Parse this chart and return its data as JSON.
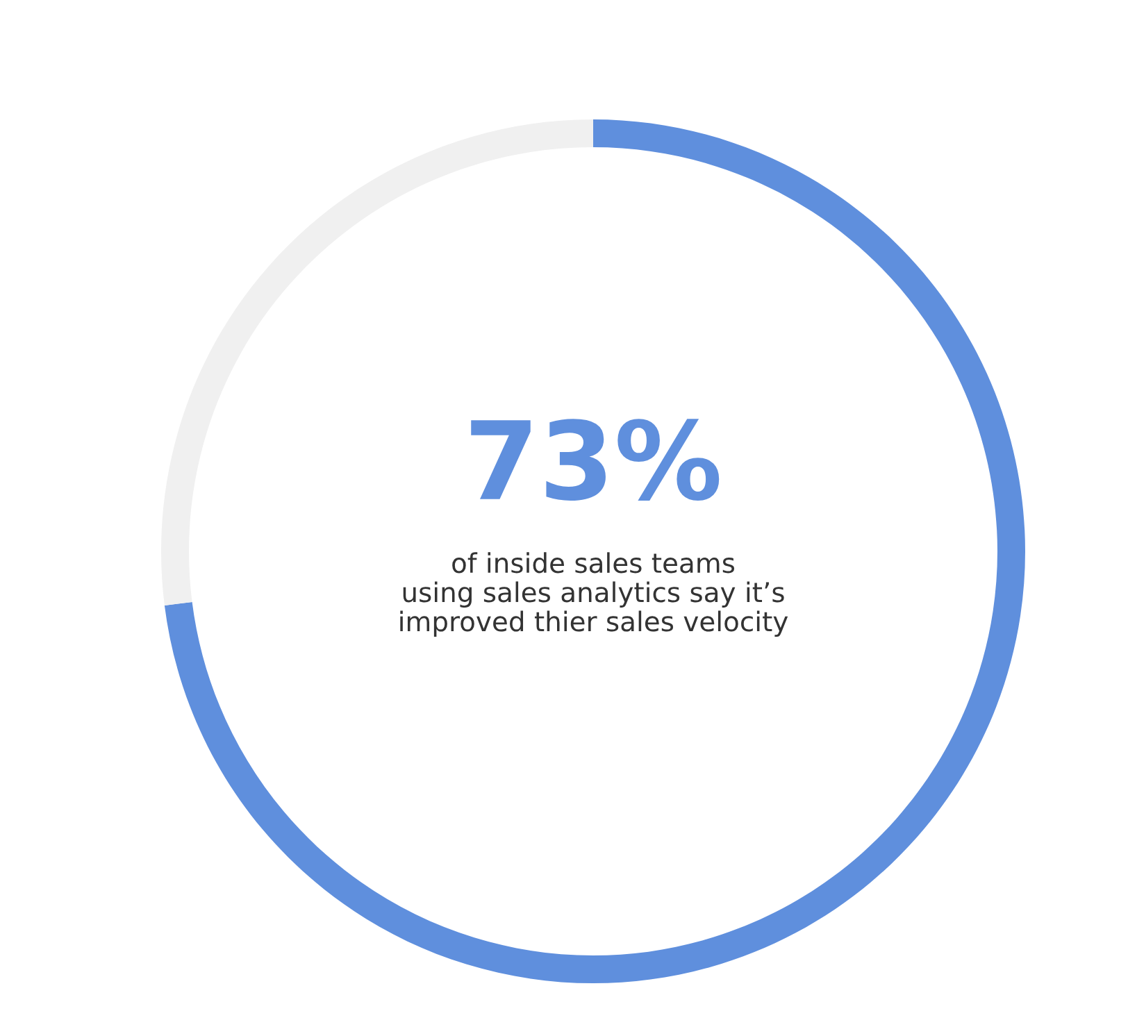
{
  "chart_data": {
    "type": "donut",
    "categories": [
      null,
      null
    ],
    "values": [
      73,
      27
    ],
    "colors": [
      "#5f8fdd",
      "#f0f0f0"
    ],
    "value_labels": [
      "73%",
      null
    ],
    "annotations": [
      "of inside sales teams\nusing sales analytics say it’s\nimproved thier sales velocity"
    ]
  }
}
